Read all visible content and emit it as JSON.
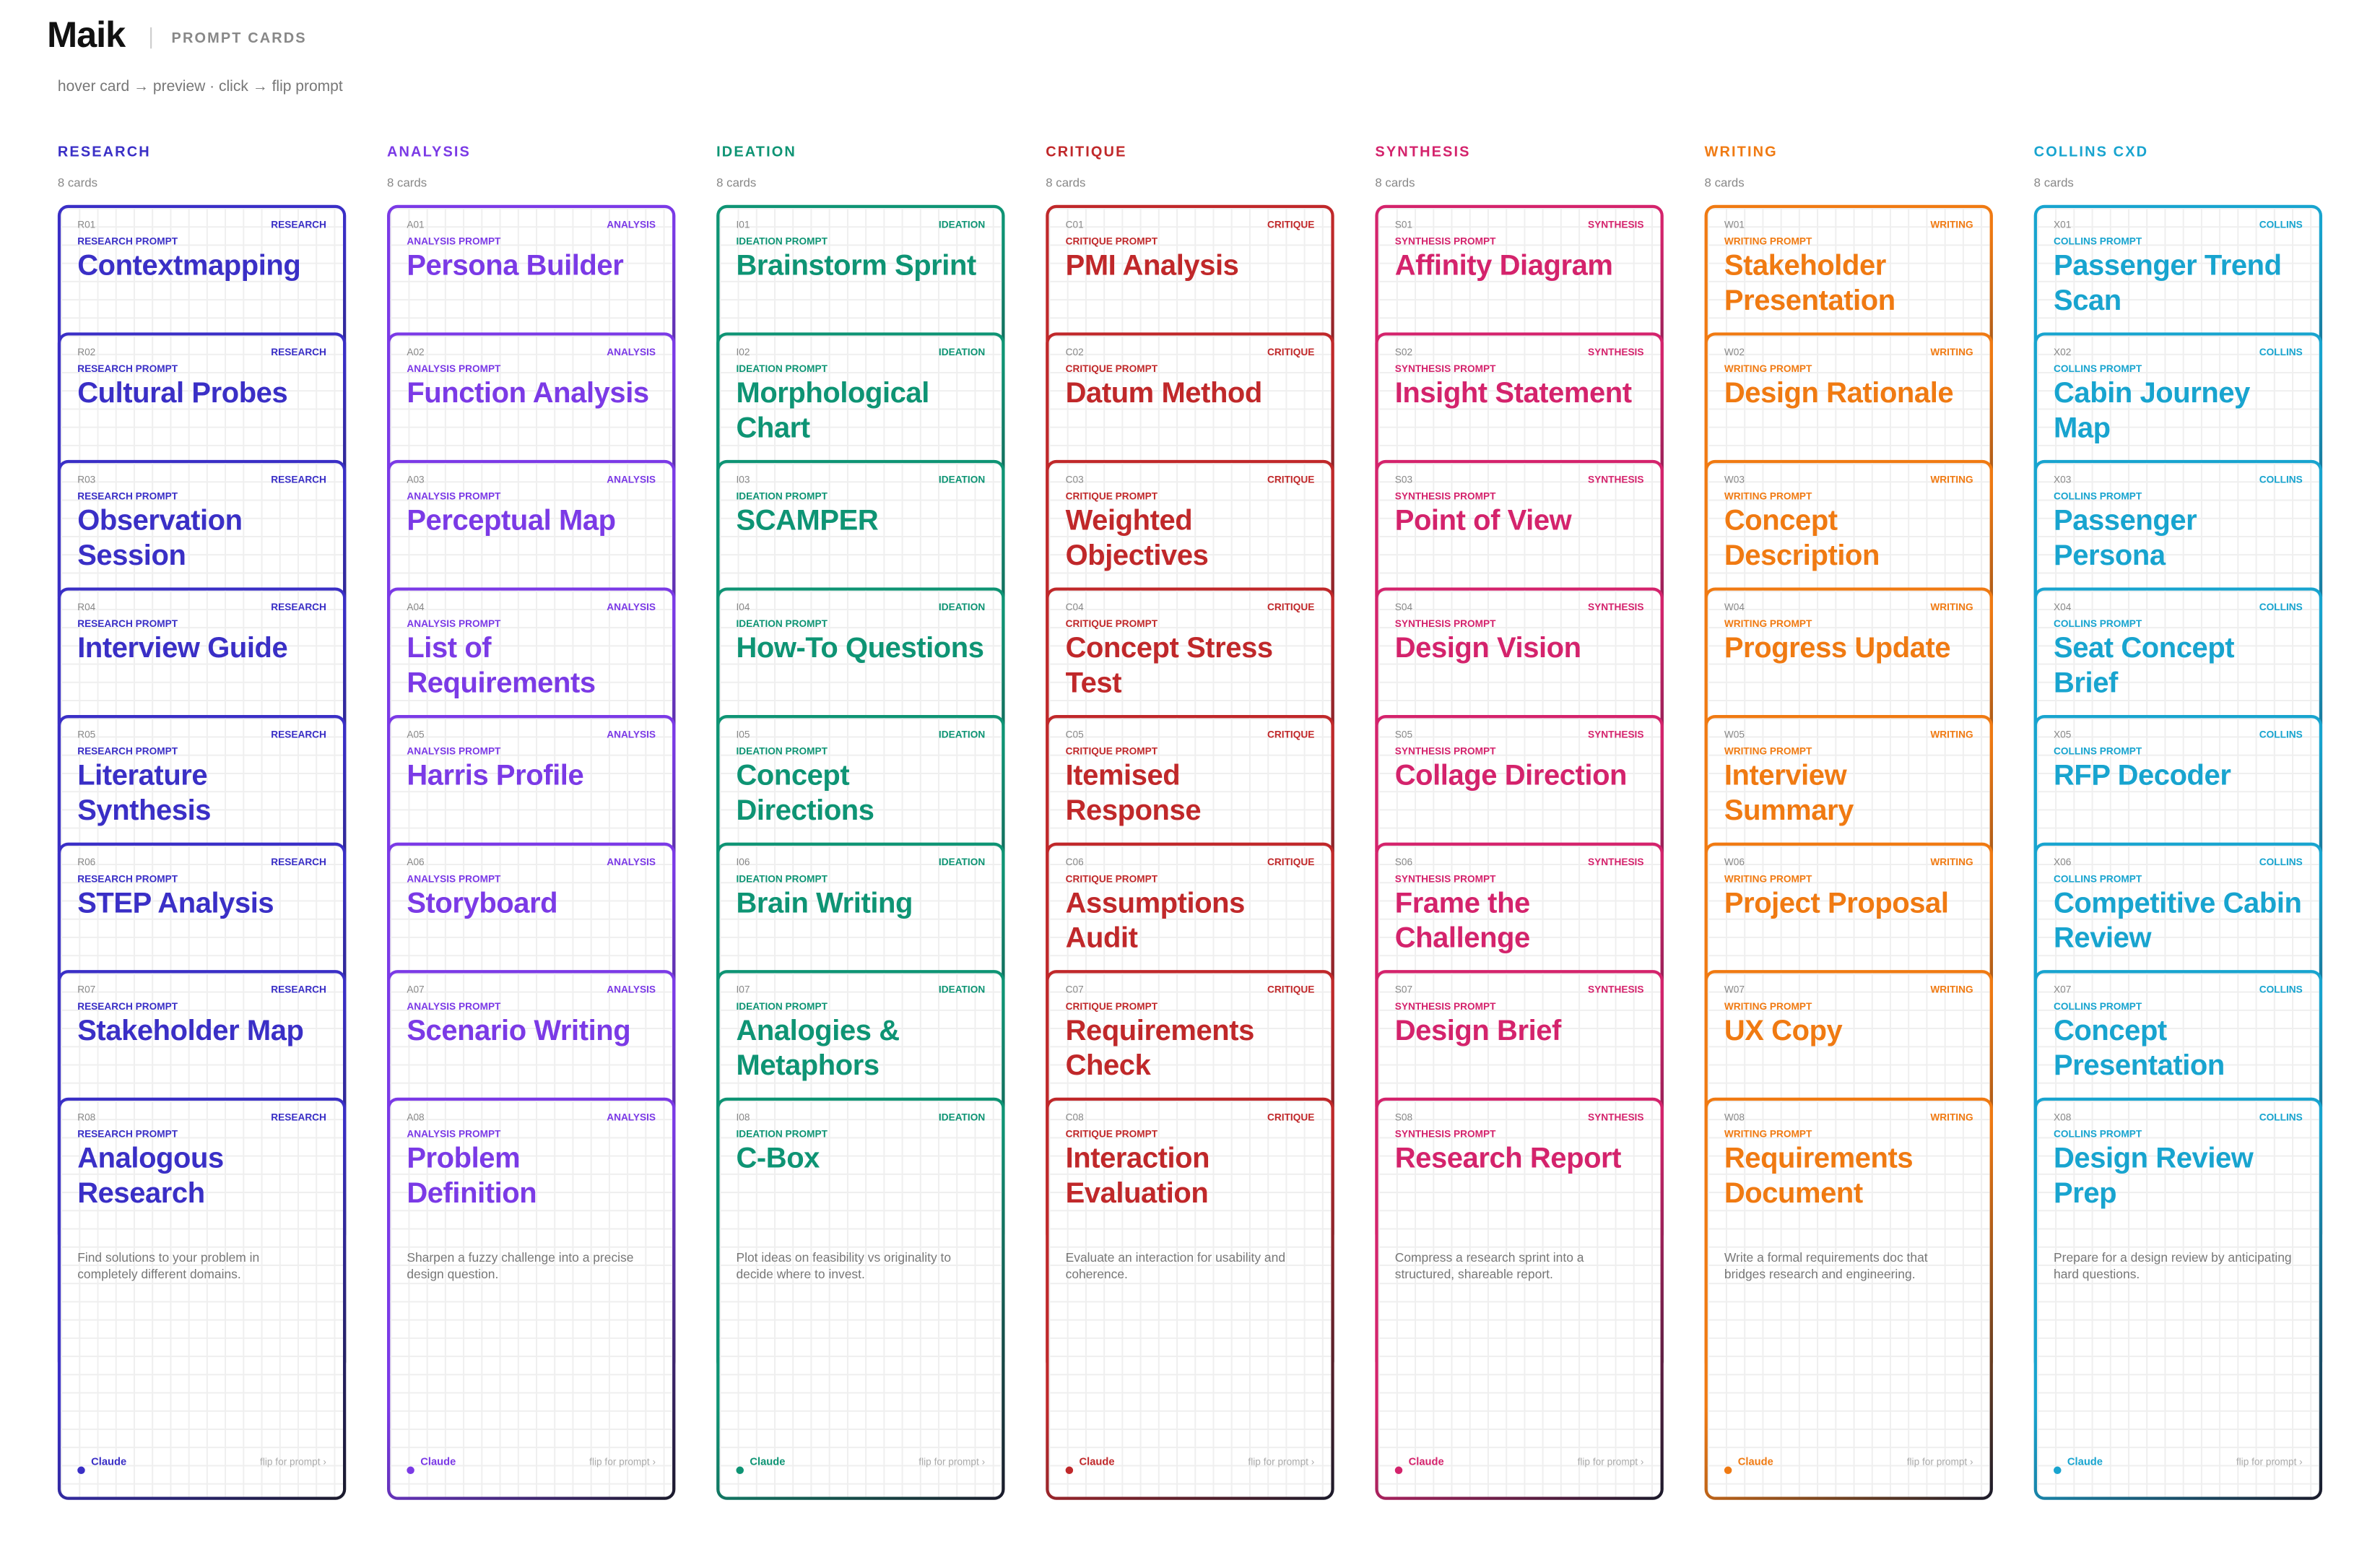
{
  "header": {
    "brand": "Maik",
    "section": "PROMPT CARDS",
    "hint": "hover card → preview · click → flip prompt"
  },
  "footer_brand": "Claude",
  "footer_link": "flip for prompt ›",
  "columns": [
    {
      "label": "RESEARCH",
      "count": "8 cards",
      "tag": "RESEARCH",
      "kind": "RESEARCH PROMPT",
      "color": "#3a2fc6",
      "cards": [
        {
          "code": "R01",
          "title": "Contextmapping"
        },
        {
          "code": "R02",
          "title": "Cultural Probes"
        },
        {
          "code": "R03",
          "title": "Observation Session"
        },
        {
          "code": "R04",
          "title": "Interview Guide"
        },
        {
          "code": "R05",
          "title": "Literature Synthesis"
        },
        {
          "code": "R06",
          "title": "STEP Analysis"
        },
        {
          "code": "R07",
          "title": "Stakeholder Map"
        },
        {
          "code": "R08",
          "title": "Analogous Research"
        }
      ],
      "description": "Find solutions to your problem in completely different domains."
    },
    {
      "label": "ANALYSIS",
      "count": "8 cards",
      "tag": "ANALYSIS",
      "kind": "ANALYSIS PROMPT",
      "color": "#7b3ae6",
      "cards": [
        {
          "code": "A01",
          "title": "Persona Builder"
        },
        {
          "code": "A02",
          "title": "Function Analysis"
        },
        {
          "code": "A03",
          "title": "Perceptual Map"
        },
        {
          "code": "A04",
          "title": "List of Requirements"
        },
        {
          "code": "A05",
          "title": "Harris Profile"
        },
        {
          "code": "A06",
          "title": "Storyboard"
        },
        {
          "code": "A07",
          "title": "Scenario Writing"
        },
        {
          "code": "A08",
          "title": "Problem Definition"
        }
      ],
      "description": "Sharpen a fuzzy challenge into a precise design question."
    },
    {
      "label": "IDEATION",
      "count": "8 cards",
      "tag": "IDEATION",
      "kind": "IDEATION PROMPT",
      "color": "#0e9474",
      "cards": [
        {
          "code": "I01",
          "title": "Brainstorm Sprint"
        },
        {
          "code": "I02",
          "title": "Morphological Chart"
        },
        {
          "code": "I03",
          "title": "SCAMPER"
        },
        {
          "code": "I04",
          "title": "How-To Questions"
        },
        {
          "code": "I05",
          "title": "Concept Directions"
        },
        {
          "code": "I06",
          "title": "Brain Writing"
        },
        {
          "code": "I07",
          "title": "Analogies & Metaphors"
        },
        {
          "code": "I08",
          "title": "C-Box"
        }
      ],
      "description": "Plot ideas on feasibility vs originality to decide where to invest."
    },
    {
      "label": "CRITIQUE",
      "count": "8 cards",
      "tag": "CRITIQUE",
      "kind": "CRITIQUE PROMPT",
      "color": "#c0282a",
      "cards": [
        {
          "code": "C01",
          "title": "PMI Analysis"
        },
        {
          "code": "C02",
          "title": "Datum Method"
        },
        {
          "code": "C03",
          "title": "Weighted Objectives"
        },
        {
          "code": "C04",
          "title": "Concept Stress Test"
        },
        {
          "code": "C05",
          "title": "Itemised Response"
        },
        {
          "code": "C06",
          "title": "Assumptions Audit"
        },
        {
          "code": "C07",
          "title": "Requirements Check"
        },
        {
          "code": "C08",
          "title": "Interaction Evaluation"
        }
      ],
      "description": "Evaluate an interaction for usability and coherence."
    },
    {
      "label": "SYNTHESIS",
      "count": "8 cards",
      "tag": "SYNTHESIS",
      "kind": "SYNTHESIS PROMPT",
      "color": "#d4236c",
      "cards": [
        {
          "code": "S01",
          "title": "Affinity Diagram"
        },
        {
          "code": "S02",
          "title": "Insight Statement"
        },
        {
          "code": "S03",
          "title": "Point of View"
        },
        {
          "code": "S04",
          "title": "Design Vision"
        },
        {
          "code": "S05",
          "title": "Collage Direction"
        },
        {
          "code": "S06",
          "title": "Frame the Challenge"
        },
        {
          "code": "S07",
          "title": "Design Brief"
        },
        {
          "code": "S08",
          "title": "Research Report"
        }
      ],
      "description": "Compress a research sprint into a structured, shareable report."
    },
    {
      "label": "WRITING",
      "count": "8 cards",
      "tag": "WRITING",
      "kind": "WRITING PROMPT",
      "color": "#f07a12",
      "cards": [
        {
          "code": "W01",
          "title": "Stakeholder Presentation"
        },
        {
          "code": "W02",
          "title": "Design Rationale"
        },
        {
          "code": "W03",
          "title": "Concept Description"
        },
        {
          "code": "W04",
          "title": "Progress Update"
        },
        {
          "code": "W05",
          "title": "Interview Summary"
        },
        {
          "code": "W06",
          "title": "Project Proposal"
        },
        {
          "code": "W07",
          "title": "UX Copy"
        },
        {
          "code": "W08",
          "title": "Requirements Document"
        }
      ],
      "description": "Write a formal requirements doc that bridges research and engineering."
    },
    {
      "label": "COLLINS CXD",
      "count": "8 cards",
      "tag": "COLLINS",
      "kind": "COLLINS PROMPT",
      "color": "#18a4cf",
      "cards": [
        {
          "code": "X01",
          "title": "Passenger Trend Scan"
        },
        {
          "code": "X02",
          "title": "Cabin Journey Map"
        },
        {
          "code": "X03",
          "title": "Passenger Persona"
        },
        {
          "code": "X04",
          "title": "Seat Concept Brief"
        },
        {
          "code": "X05",
          "title": "RFP Decoder"
        },
        {
          "code": "X06",
          "title": "Competitive Cabin Review"
        },
        {
          "code": "X07",
          "title": "Concept Presentation"
        },
        {
          "code": "X08",
          "title": "Design Review Prep"
        }
      ],
      "description": "Prepare for a design review by anticipating hard questions."
    }
  ]
}
